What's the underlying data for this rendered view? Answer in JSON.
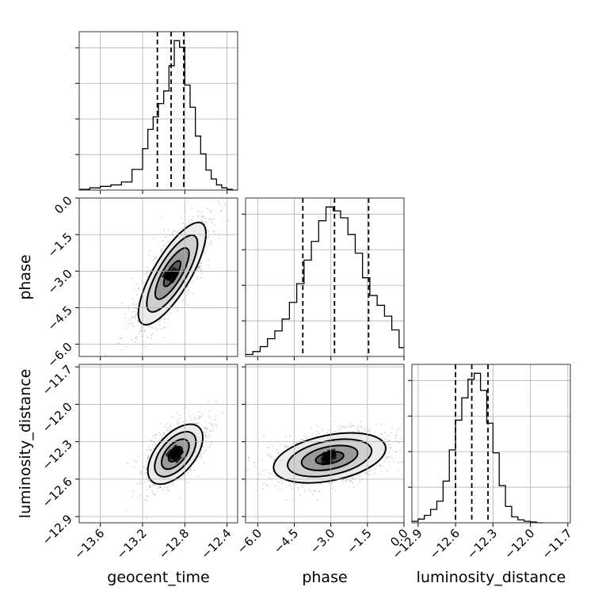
{
  "chart_data": {
    "type": "corner",
    "parameters": [
      "geocent_time",
      "phase",
      "luminosity_distance"
    ],
    "axes": {
      "geocent_time": {
        "label": "geocent_time",
        "range": [
          -13.8,
          -12.3
        ],
        "ticks": [
          -13.6,
          -13.2,
          -12.8,
          -12.4
        ],
        "tick_labels": [
          "−13.6",
          "−13.2",
          "−12.8",
          "−12.4"
        ]
      },
      "phase": {
        "label": "phase",
        "range": [
          -6.5,
          0.0
        ],
        "ticks": [
          -6.0,
          -4.5,
          -3.0,
          -1.5,
          0.0
        ],
        "tick_labels": [
          "−6.0",
          "−4.5",
          "−3.0",
          "−1.5",
          "0.0"
        ]
      },
      "luminosity_distance": {
        "label": "luminosity_distance",
        "range": [
          -12.95,
          -11.68
        ],
        "ticks": [
          -12.9,
          -12.6,
          -12.3,
          -12.0,
          -11.7
        ],
        "tick_labels": [
          "−12.9",
          "−12.6",
          "−12.3",
          "−12.0",
          "−11.7"
        ]
      }
    },
    "histograms": {
      "geocent_time": {
        "bin_edges": [
          -13.8,
          -13.7,
          -13.6,
          -13.5,
          -13.4,
          -13.3,
          -13.2,
          -13.15,
          -13.1,
          -13.05,
          -13.0,
          -12.95,
          -12.9,
          -12.85,
          -12.8,
          -12.75,
          -12.7,
          -12.65,
          -12.6,
          -12.55,
          -12.5,
          -12.45,
          -12.4,
          -12.35,
          -12.3
        ],
        "counts": [
          1,
          3,
          5,
          7,
          11,
          28,
          56,
          82,
          99,
          117,
          134,
          168,
          202,
          193,
          142,
          112,
          73,
          49,
          27,
          15,
          7,
          3,
          1,
          0
        ],
        "quantiles": [
          -13.06,
          -12.93,
          -12.81
        ]
      },
      "phase": {
        "bin_edges": [
          -6.5,
          -6.2,
          -5.9,
          -5.6,
          -5.3,
          -5.0,
          -4.7,
          -4.4,
          -4.1,
          -3.8,
          -3.5,
          -3.2,
          -2.9,
          -2.6,
          -2.3,
          -2.0,
          -1.7,
          -1.4,
          -1.1,
          -0.8,
          -0.5,
          -0.2,
          0.0
        ],
        "counts": [
          2,
          5,
          10,
          18,
          26,
          38,
          55,
          74,
          98,
          117,
          138,
          152,
          148,
          141,
          124,
          105,
          80,
          62,
          52,
          41,
          27,
          9
        ],
        "quantiles": [
          -4.15,
          -2.85,
          -1.45
        ]
      },
      "luminosity_distance": {
        "bin_edges": [
          -12.95,
          -12.9,
          -12.85,
          -12.8,
          -12.75,
          -12.7,
          -12.65,
          -12.6,
          -12.55,
          -12.5,
          -12.45,
          -12.4,
          -12.35,
          -12.3,
          -12.25,
          -12.2,
          -12.15,
          -12.1,
          -12.05,
          -12.0,
          -11.95,
          -11.9
        ],
        "counts": [
          2,
          5,
          10,
          18,
          29,
          56,
          98,
          138,
          168,
          193,
          201,
          178,
          134,
          94,
          50,
          22,
          8,
          4,
          2,
          1,
          0
        ],
        "quantiles": [
          -12.6,
          -12.47,
          -12.34
        ]
      }
    },
    "joint": [
      {
        "x": "geocent_time",
        "y": "phase",
        "center": [
          -12.92,
          -3.1
        ],
        "sd": [
          0.16,
          1.05
        ],
        "correlation": 0.78
      },
      {
        "x": "geocent_time",
        "y": "luminosity_distance",
        "center": [
          -12.89,
          -12.4
        ],
        "sd": [
          0.13,
          0.12
        ],
        "correlation": 0.55
      },
      {
        "x": "phase",
        "y": "luminosity_distance",
        "center": [
          -3.05,
          -12.43
        ],
        "sd": [
          1.15,
          0.1
        ],
        "correlation": 0.38
      }
    ],
    "contour_levels_sigma": [
      0.5,
      1.0,
      1.5,
      2.0
    ],
    "grid": true
  }
}
